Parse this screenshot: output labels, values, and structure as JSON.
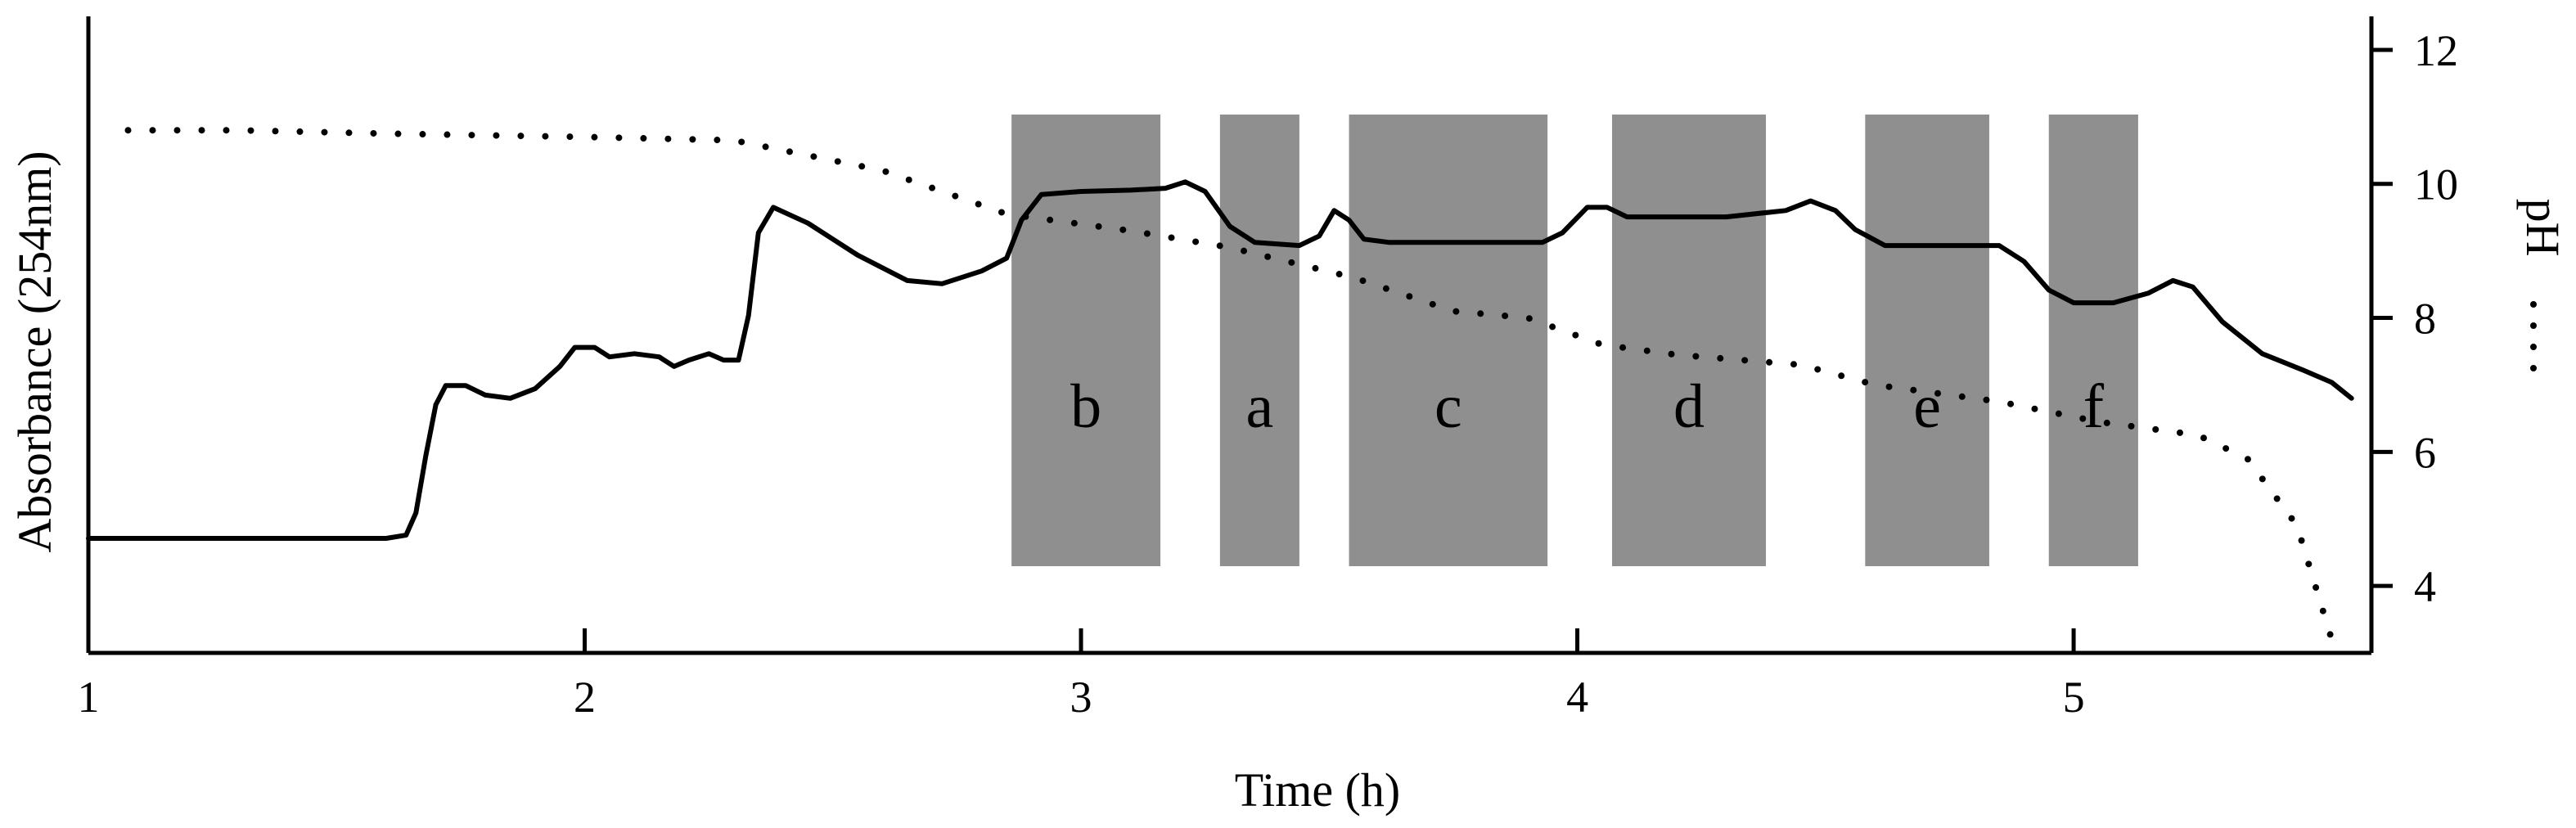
{
  "chart_data": {
    "type": "line",
    "xlabel": "Time (h)",
    "ylabel_left": "Absorbance (254nm)",
    "ylabel_right": "pH",
    "xlim": [
      1,
      5.6
    ],
    "x_ticks": [
      1,
      2,
      3,
      4,
      5
    ],
    "y_right_lim": [
      3,
      12.5
    ],
    "y_right_ticks": [
      4,
      6,
      8,
      10,
      12
    ],
    "y_left_lim": [
      0,
      1
    ],
    "series": [
      {
        "name": "",
        "axis": "left",
        "style": "solid",
        "points": [
          [
            1.0,
            0.18
          ],
          [
            1.6,
            0.18
          ],
          [
            1.64,
            0.185
          ],
          [
            1.66,
            0.22
          ],
          [
            1.68,
            0.31
          ],
          [
            1.7,
            0.39
          ],
          [
            1.72,
            0.42
          ],
          [
            1.76,
            0.42
          ],
          [
            1.8,
            0.405
          ],
          [
            1.85,
            0.4
          ],
          [
            1.9,
            0.415
          ],
          [
            1.95,
            0.45
          ],
          [
            1.98,
            0.48
          ],
          [
            2.02,
            0.48
          ],
          [
            2.05,
            0.465
          ],
          [
            2.1,
            0.47
          ],
          [
            2.15,
            0.465
          ],
          [
            2.18,
            0.45
          ],
          [
            2.21,
            0.46
          ],
          [
            2.25,
            0.47
          ],
          [
            2.28,
            0.46
          ],
          [
            2.31,
            0.46
          ],
          [
            2.33,
            0.53
          ],
          [
            2.35,
            0.66
          ],
          [
            2.38,
            0.7
          ],
          [
            2.45,
            0.675
          ],
          [
            2.55,
            0.625
          ],
          [
            2.65,
            0.585
          ],
          [
            2.72,
            0.58
          ],
          [
            2.8,
            0.6
          ],
          [
            2.85,
            0.62
          ],
          [
            2.88,
            0.68
          ],
          [
            2.92,
            0.72
          ],
          [
            3.0,
            0.725
          ],
          [
            3.1,
            0.727
          ],
          [
            3.17,
            0.73
          ],
          [
            3.21,
            0.74
          ],
          [
            3.25,
            0.725
          ],
          [
            3.3,
            0.67
          ],
          [
            3.35,
            0.645
          ],
          [
            3.44,
            0.64
          ],
          [
            3.48,
            0.655
          ],
          [
            3.51,
            0.695
          ],
          [
            3.54,
            0.68
          ],
          [
            3.57,
            0.65
          ],
          [
            3.62,
            0.645
          ],
          [
            3.8,
            0.645
          ],
          [
            3.93,
            0.645
          ],
          [
            3.97,
            0.66
          ],
          [
            4.02,
            0.7
          ],
          [
            4.06,
            0.7
          ],
          [
            4.1,
            0.685
          ],
          [
            4.3,
            0.685
          ],
          [
            4.42,
            0.695
          ],
          [
            4.47,
            0.71
          ],
          [
            4.52,
            0.695
          ],
          [
            4.56,
            0.665
          ],
          [
            4.62,
            0.64
          ],
          [
            4.75,
            0.64
          ],
          [
            4.85,
            0.64
          ],
          [
            4.9,
            0.615
          ],
          [
            4.95,
            0.57
          ],
          [
            5.0,
            0.55
          ],
          [
            5.08,
            0.55
          ],
          [
            5.15,
            0.565
          ],
          [
            5.2,
            0.585
          ],
          [
            5.24,
            0.575
          ],
          [
            5.3,
            0.52
          ],
          [
            5.38,
            0.47
          ],
          [
            5.46,
            0.445
          ],
          [
            5.52,
            0.425
          ],
          [
            5.56,
            0.4
          ]
        ]
      },
      {
        "name": "",
        "axis": "right",
        "style": "dotted",
        "points": [
          [
            1.08,
            10.8
          ],
          [
            1.3,
            10.8
          ],
          [
            1.6,
            10.75
          ],
          [
            2.0,
            10.7
          ],
          [
            2.3,
            10.65
          ],
          [
            2.6,
            10.2
          ],
          [
            2.85,
            9.55
          ],
          [
            3.1,
            9.3
          ],
          [
            3.3,
            9.05
          ],
          [
            3.55,
            8.6
          ],
          [
            3.75,
            8.1
          ],
          [
            3.9,
            8.0
          ],
          [
            4.05,
            7.6
          ],
          [
            4.2,
            7.45
          ],
          [
            4.45,
            7.3
          ],
          [
            4.6,
            7.0
          ],
          [
            4.85,
            6.75
          ],
          [
            5.05,
            6.45
          ],
          [
            5.25,
            6.25
          ],
          [
            5.35,
            5.9
          ],
          [
            5.45,
            4.9
          ],
          [
            5.52,
            3.2
          ]
        ]
      }
    ],
    "regions": [
      {
        "label": "b",
        "x_start": 2.86,
        "x_end": 3.16
      },
      {
        "label": "a",
        "x_start": 3.28,
        "x_end": 3.44
      },
      {
        "label": "c",
        "x_start": 3.54,
        "x_end": 3.94
      },
      {
        "label": "d",
        "x_start": 4.07,
        "x_end": 4.38
      },
      {
        "label": "e",
        "x_start": 4.58,
        "x_end": 4.83
      },
      {
        "label": "f",
        "x_start": 4.95,
        "x_end": 5.13
      }
    ],
    "region_fill": "#8f8f8f"
  }
}
